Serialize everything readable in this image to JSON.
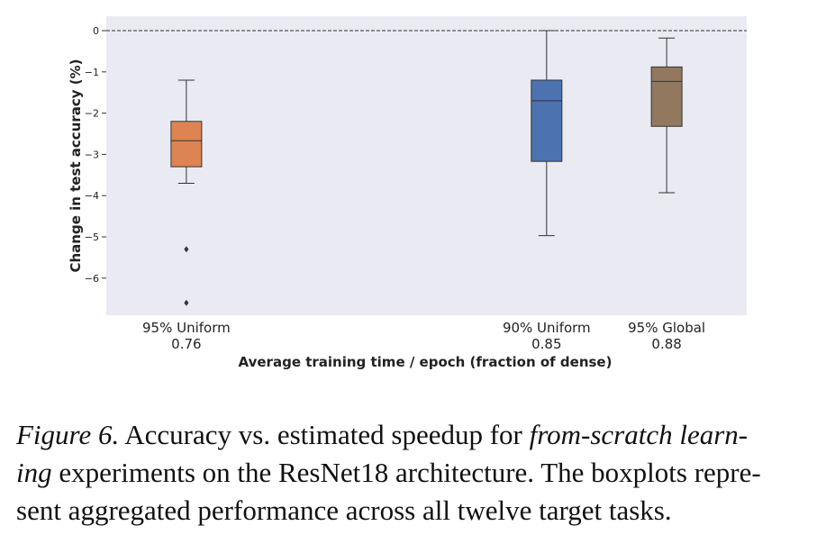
{
  "chart_data": {
    "type": "box",
    "xlabel": "Average training time / epoch (fraction of dense)",
    "ylabel": "Change in test accuracy (%)",
    "ylim": [
      -6.9,
      0.35
    ],
    "yticks": [
      0,
      -1,
      -2,
      -3,
      -4,
      -5,
      -6
    ],
    "xlim": [
      0.74,
      0.9
    ],
    "reference_line": 0,
    "boxes": [
      {
        "label": "95% Uniform",
        "x": 0.76,
        "color": "#DD8452",
        "whisker_low": -3.7,
        "q1": -3.3,
        "median": -2.67,
        "q3": -2.2,
        "whisker_high": -1.2,
        "outliers": [
          -5.3,
          -6.6
        ]
      },
      {
        "label": "90% Uniform",
        "x": 0.85,
        "color": "#4C72B0",
        "whisker_low": -4.97,
        "q1": -3.17,
        "median": -1.7,
        "q3": -1.2,
        "whisker_high": 0.0,
        "outliers": []
      },
      {
        "label": "95% Global",
        "x": 0.88,
        "color": "#937860",
        "whisker_low": -3.93,
        "q1": -2.32,
        "median": -1.23,
        "q3": -0.88,
        "whisker_high": -0.18,
        "outliers": []
      }
    ]
  },
  "caption": {
    "figure_label": "Figure 6.",
    "line1_text": " Accuracy vs. estimated speedup for ",
    "line1_italic": "from-scratch learn-",
    "line2_italic": "ing",
    "line2_text": " experiments on the ResNet18 architecture. The boxplots repre-",
    "line3_text": "sent aggregated performance across all twelve target tasks."
  }
}
